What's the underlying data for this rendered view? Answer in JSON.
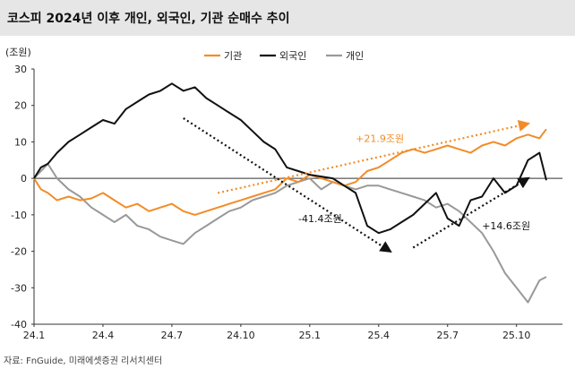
{
  "chart_data": {
    "type": "line",
    "title": "코스피 2024년 이후 개인, 외국인, 기관 순매수 추이",
    "ylabel": "(조원)",
    "xlabel": "",
    "ylim": [
      -40,
      30
    ],
    "y_ticks": [
      30,
      20,
      10,
      0,
      -10,
      -20,
      -30,
      -40
    ],
    "x_ticks": [
      "24.1",
      "24.4",
      "24.7",
      "24.10",
      "25.1",
      "25.4",
      "25.7",
      "25.10"
    ],
    "x_tick_positions": [
      0,
      3,
      6,
      9,
      12,
      15,
      18,
      21
    ],
    "x_range": [
      0,
      23
    ],
    "legend": [
      "기관",
      "외국인",
      "개인"
    ],
    "legend_position": "top-center",
    "series": [
      {
        "name": "기관",
        "color": "#f28c28",
        "x": [
          0,
          0.3,
          0.6,
          1,
          1.5,
          2,
          2.5,
          3,
          3.5,
          4,
          4.5,
          5,
          5.5,
          6,
          6.5,
          7,
          7.5,
          8,
          8.5,
          9,
          9.5,
          10,
          10.5,
          11,
          11.5,
          12,
          12.5,
          13,
          13.5,
          14,
          14.5,
          15,
          15.5,
          16,
          16.5,
          17,
          17.5,
          18,
          18.5,
          19,
          19.5,
          20,
          20.5,
          21,
          21.5,
          22,
          22.3
        ],
        "values": [
          0,
          -3,
          -4,
          -6,
          -5,
          -6,
          -5.5,
          -4,
          -6,
          -8,
          -7,
          -9,
          -8,
          -7,
          -9,
          -10,
          -9,
          -8,
          -7,
          -6,
          -5,
          -4,
          -3,
          0,
          -1,
          1,
          0,
          -1,
          -2,
          -1,
          2,
          3,
          5,
          7,
          8,
          7,
          8,
          9,
          8,
          7,
          9,
          10,
          9,
          11,
          12,
          11,
          13.5
        ]
      },
      {
        "name": "외국인",
        "color": "#111111",
        "x": [
          0,
          0.3,
          0.6,
          1,
          1.5,
          2,
          2.5,
          3,
          3.5,
          4,
          4.5,
          5,
          5.5,
          6,
          6.5,
          7,
          7.5,
          8,
          8.5,
          9,
          9.5,
          10,
          10.5,
          11,
          11.5,
          12,
          12.5,
          13,
          13.5,
          14,
          14.5,
          15,
          15.5,
          16,
          16.5,
          17,
          17.5,
          18,
          18.5,
          19,
          19.5,
          20,
          20.5,
          21,
          21.5,
          22,
          22.3
        ],
        "values": [
          0,
          3,
          4,
          7,
          10,
          12,
          14,
          16,
          15,
          19,
          21,
          23,
          24,
          26,
          24,
          25,
          22,
          20,
          18,
          16,
          13,
          10,
          8,
          3,
          2,
          1,
          0.5,
          0,
          -2,
          -4,
          -13,
          -15,
          -14,
          -12,
          -10,
          -7,
          -4,
          -11,
          -13,
          -6,
          -5,
          0,
          -4,
          -2,
          5,
          7,
          -0.5
        ]
      },
      {
        "name": "개인",
        "color": "#999999",
        "x": [
          0,
          0.3,
          0.6,
          1,
          1.5,
          2,
          2.5,
          3,
          3.5,
          4,
          4.5,
          5,
          5.5,
          6,
          6.5,
          7,
          7.5,
          8,
          8.5,
          9,
          9.5,
          10,
          10.5,
          11,
          11.5,
          12,
          12.5,
          13,
          13.5,
          14,
          14.5,
          15,
          15.5,
          16,
          16.5,
          17,
          17.5,
          18,
          18.5,
          19,
          19.5,
          20,
          20.5,
          21,
          21.5,
          22,
          22.3
        ],
        "values": [
          0,
          2,
          4,
          0,
          -3,
          -5,
          -8,
          -10,
          -12,
          -10,
          -13,
          -14,
          -16,
          -17,
          -18,
          -15,
          -13,
          -11,
          -9,
          -8,
          -6,
          -5,
          -4,
          -2,
          -1,
          0,
          -3,
          -1,
          -2,
          -3,
          -2,
          -2,
          -3,
          -4,
          -5,
          -6,
          -8,
          -7,
          -9,
          -12,
          -15,
          -20,
          -26,
          -30,
          -34,
          -28,
          -27
        ]
      }
    ],
    "annotations": [
      {
        "text": "+21.9조원",
        "color": "#f28c28",
        "x": 14,
        "y": 10
      },
      {
        "text": "-41.4조원",
        "color": "#111111",
        "x": 11.5,
        "y": -12
      },
      {
        "text": "+14.6조원",
        "color": "#111111",
        "x": 19.5,
        "y": -14
      }
    ],
    "arrows": [
      {
        "color": "#f28c28",
        "from": [
          8,
          -4
        ],
        "to": [
          21.5,
          15
        ]
      },
      {
        "color": "#111111",
        "from": [
          6.5,
          16.5
        ],
        "to": [
          15.5,
          -20
        ]
      },
      {
        "color": "#111111",
        "from": [
          16.5,
          -19
        ],
        "to": [
          21.5,
          0
        ]
      }
    ]
  },
  "source": "자료: FnGuide, 미래에셋증권 리서치센터"
}
